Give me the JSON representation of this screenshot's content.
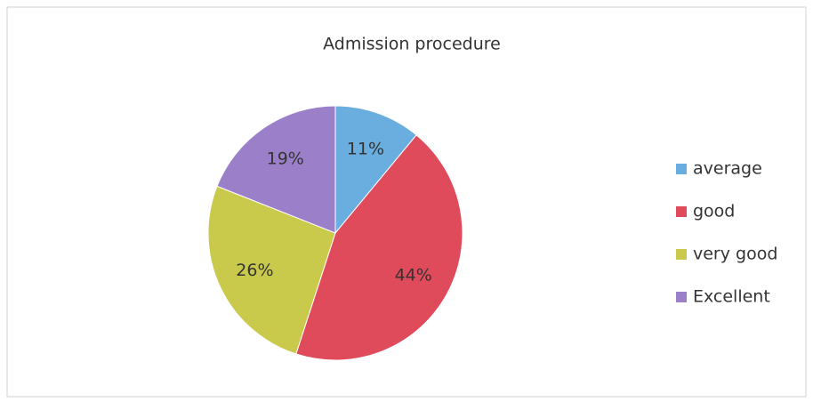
{
  "chart_data": {
    "type": "pie",
    "title": "Admission procedure",
    "categories": [
      "average",
      "good",
      "very good",
      "Excellent"
    ],
    "values": [
      11,
      44,
      26,
      19
    ],
    "value_labels": [
      "11%",
      "44%",
      "26%",
      "19%"
    ],
    "colors": [
      "#6aaee0",
      "#e04b5c",
      "#c9c94b",
      "#9b80c9"
    ],
    "legend": "right"
  }
}
